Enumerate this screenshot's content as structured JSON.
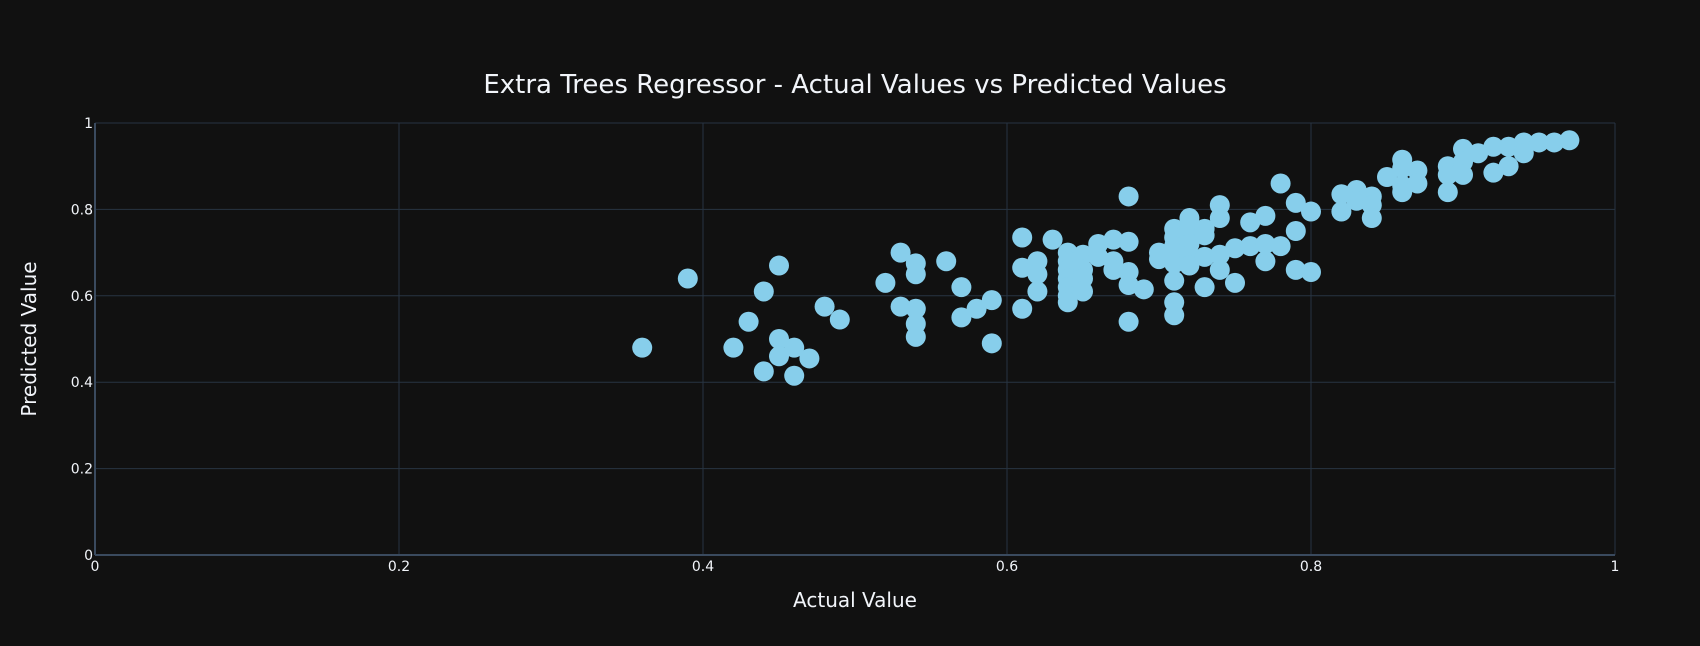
{
  "chart_data": {
    "type": "scatter",
    "title": "Extra Trees Regressor - Actual Values vs Predicted Values",
    "xlabel": "Actual Value",
    "ylabel": "Predicted Value",
    "xlim": [
      0,
      1
    ],
    "ylim": [
      0,
      1
    ],
    "x_ticks": [
      "0",
      "0.2",
      "0.4",
      "0.6",
      "0.8",
      "1"
    ],
    "y_ticks": [
      "0",
      "0.2",
      "0.4",
      "0.6",
      "0.8",
      "1"
    ],
    "grid": true,
    "marker_color": "#87ceeb",
    "points": [
      [
        0.36,
        0.48
      ],
      [
        0.39,
        0.64
      ],
      [
        0.42,
        0.48
      ],
      [
        0.43,
        0.54
      ],
      [
        0.44,
        0.61
      ],
      [
        0.44,
        0.425
      ],
      [
        0.45,
        0.67
      ],
      [
        0.45,
        0.5
      ],
      [
        0.45,
        0.46
      ],
      [
        0.46,
        0.48
      ],
      [
        0.46,
        0.415
      ],
      [
        0.47,
        0.455
      ],
      [
        0.48,
        0.575
      ],
      [
        0.49,
        0.545
      ],
      [
        0.52,
        0.63
      ],
      [
        0.53,
        0.7
      ],
      [
        0.53,
        0.575
      ],
      [
        0.54,
        0.675
      ],
      [
        0.54,
        0.65
      ],
      [
        0.54,
        0.57
      ],
      [
        0.54,
        0.535
      ],
      [
        0.54,
        0.505
      ],
      [
        0.56,
        0.68
      ],
      [
        0.57,
        0.62
      ],
      [
        0.57,
        0.55
      ],
      [
        0.58,
        0.57
      ],
      [
        0.59,
        0.59
      ],
      [
        0.59,
        0.49
      ],
      [
        0.61,
        0.735
      ],
      [
        0.61,
        0.665
      ],
      [
        0.61,
        0.57
      ],
      [
        0.62,
        0.68
      ],
      [
        0.62,
        0.65
      ],
      [
        0.62,
        0.61
      ],
      [
        0.63,
        0.73
      ],
      [
        0.64,
        0.7
      ],
      [
        0.64,
        0.68
      ],
      [
        0.64,
        0.66
      ],
      [
        0.64,
        0.64
      ],
      [
        0.64,
        0.62
      ],
      [
        0.64,
        0.6
      ],
      [
        0.64,
        0.585
      ],
      [
        0.65,
        0.695
      ],
      [
        0.65,
        0.66
      ],
      [
        0.65,
        0.64
      ],
      [
        0.65,
        0.61
      ],
      [
        0.66,
        0.72
      ],
      [
        0.66,
        0.69
      ],
      [
        0.67,
        0.73
      ],
      [
        0.67,
        0.68
      ],
      [
        0.67,
        0.66
      ],
      [
        0.68,
        0.83
      ],
      [
        0.68,
        0.725
      ],
      [
        0.68,
        0.655
      ],
      [
        0.68,
        0.625
      ],
      [
        0.68,
        0.54
      ],
      [
        0.69,
        0.615
      ],
      [
        0.7,
        0.7
      ],
      [
        0.7,
        0.685
      ],
      [
        0.71,
        0.755
      ],
      [
        0.71,
        0.735
      ],
      [
        0.71,
        0.715
      ],
      [
        0.71,
        0.695
      ],
      [
        0.71,
        0.675
      ],
      [
        0.71,
        0.635
      ],
      [
        0.71,
        0.585
      ],
      [
        0.71,
        0.555
      ],
      [
        0.72,
        0.78
      ],
      [
        0.72,
        0.755
      ],
      [
        0.72,
        0.72
      ],
      [
        0.72,
        0.695
      ],
      [
        0.72,
        0.67
      ],
      [
        0.73,
        0.755
      ],
      [
        0.73,
        0.74
      ],
      [
        0.73,
        0.69
      ],
      [
        0.73,
        0.62
      ],
      [
        0.74,
        0.81
      ],
      [
        0.74,
        0.78
      ],
      [
        0.74,
        0.695
      ],
      [
        0.74,
        0.66
      ],
      [
        0.75,
        0.71
      ],
      [
        0.75,
        0.63
      ],
      [
        0.76,
        0.77
      ],
      [
        0.76,
        0.715
      ],
      [
        0.77,
        0.785
      ],
      [
        0.77,
        0.72
      ],
      [
        0.77,
        0.68
      ],
      [
        0.78,
        0.86
      ],
      [
        0.78,
        0.715
      ],
      [
        0.79,
        0.815
      ],
      [
        0.79,
        0.75
      ],
      [
        0.79,
        0.66
      ],
      [
        0.8,
        0.795
      ],
      [
        0.8,
        0.655
      ],
      [
        0.82,
        0.835
      ],
      [
        0.82,
        0.795
      ],
      [
        0.83,
        0.845
      ],
      [
        0.83,
        0.82
      ],
      [
        0.84,
        0.83
      ],
      [
        0.84,
        0.81
      ],
      [
        0.84,
        0.78
      ],
      [
        0.85,
        0.875
      ],
      [
        0.86,
        0.915
      ],
      [
        0.86,
        0.895
      ],
      [
        0.86,
        0.855
      ],
      [
        0.86,
        0.84
      ],
      [
        0.87,
        0.89
      ],
      [
        0.87,
        0.86
      ],
      [
        0.89,
        0.9
      ],
      [
        0.89,
        0.88
      ],
      [
        0.89,
        0.84
      ],
      [
        0.9,
        0.94
      ],
      [
        0.9,
        0.91
      ],
      [
        0.9,
        0.88
      ],
      [
        0.91,
        0.93
      ],
      [
        0.92,
        0.945
      ],
      [
        0.92,
        0.885
      ],
      [
        0.93,
        0.945
      ],
      [
        0.93,
        0.9
      ],
      [
        0.94,
        0.955
      ],
      [
        0.94,
        0.93
      ],
      [
        0.95,
        0.955
      ],
      [
        0.96,
        0.955
      ],
      [
        0.97,
        0.96
      ]
    ]
  }
}
